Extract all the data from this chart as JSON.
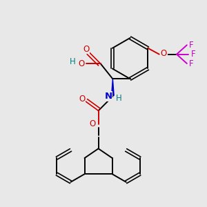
{
  "background_color": "#e8e8e8",
  "figsize": [
    3.0,
    3.0
  ],
  "dpi": 100,
  "colors": {
    "C": "#000000",
    "O": "#cc0000",
    "N": "#0000cc",
    "F": "#cc00cc",
    "H": "#008080",
    "bond": "#000000"
  },
  "lw_single": 1.4,
  "lw_double": 1.2,
  "double_sep": 0.07,
  "font_size": 8.5
}
